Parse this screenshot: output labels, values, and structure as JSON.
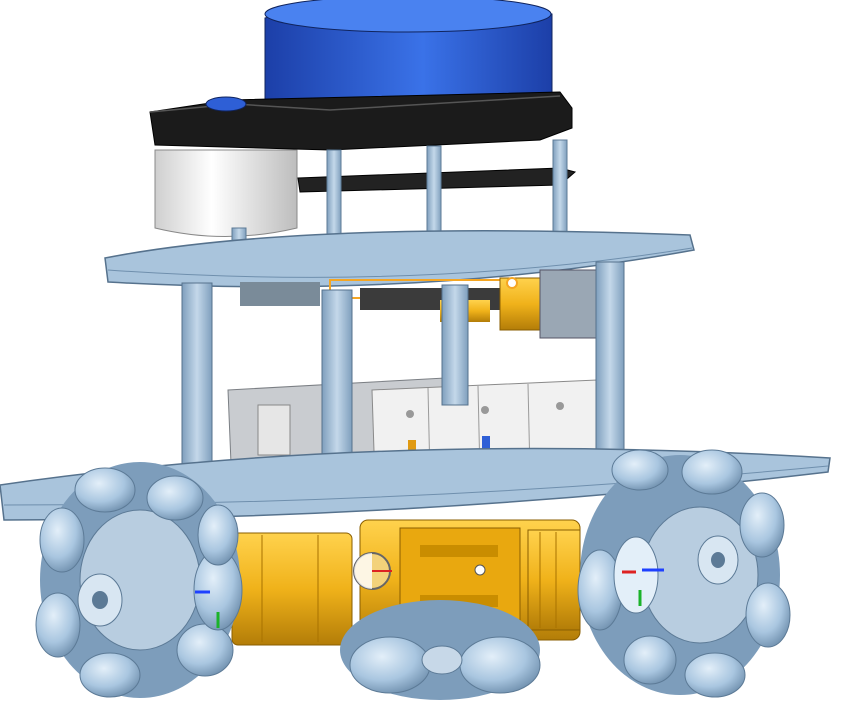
{
  "scene": {
    "subject": "mecanum-wheel-robot-cad-model",
    "background": "#ffffff",
    "colors": {
      "deck": "#a9c4dc",
      "deck_edge": "#6f8fad",
      "standoff": "#9fbbd6",
      "lidar_blue": "#2e5fd6",
      "lidar_dark": "#1a1a1a",
      "motor_yellow": "#f0b21a",
      "wheel_light": "#b8d3ea",
      "wheel_shadow": "#7d9dbb",
      "white_part": "#eeeeee",
      "grey_part": "#b9bcc0",
      "highlight": "#f5a623"
    },
    "icons": [
      "origin-axis-left-icon",
      "origin-axis-right-icon",
      "origin-axis-center-icon"
    ]
  }
}
